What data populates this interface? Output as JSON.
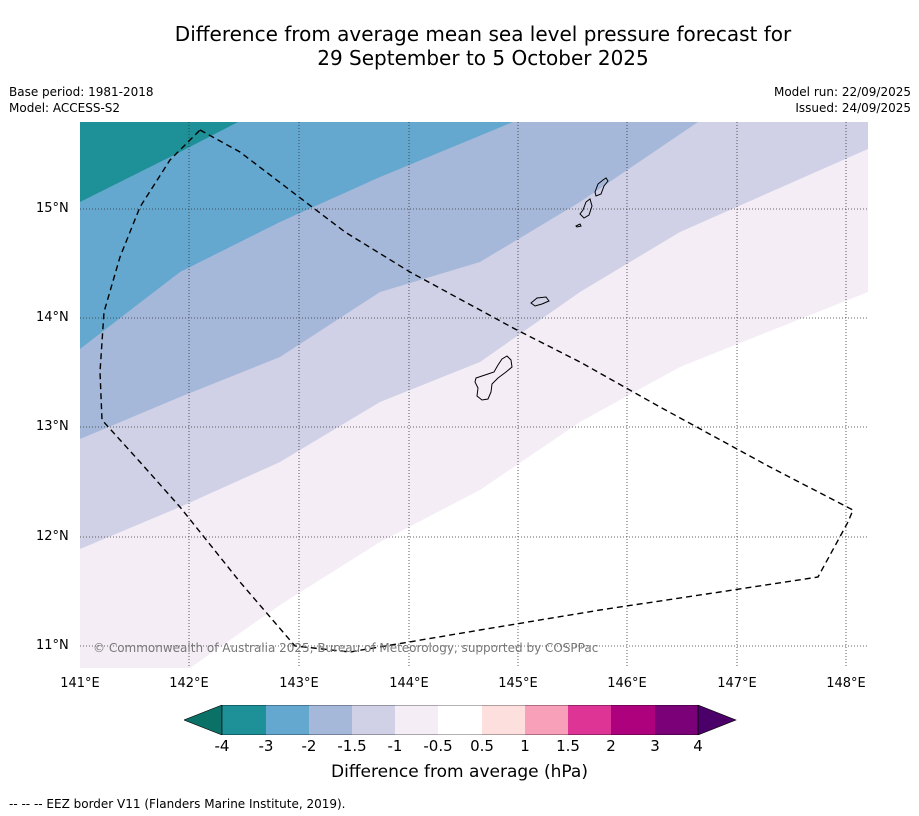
{
  "title": {
    "line1": "Difference from average mean sea level pressure forecast for",
    "line2": "29 September to 5 October 2025"
  },
  "meta": {
    "base_period": "Base period: 1981-2018",
    "model": "Model: ACCESS-S2",
    "model_run": "Model run: 22/09/2025",
    "issued": "Issued: 24/09/2025"
  },
  "axes": {
    "lat_labels": [
      "15°N",
      "14°N",
      "13°N",
      "12°N",
      "11°N"
    ],
    "lon_labels": [
      "141°E",
      "142°E",
      "143°E",
      "144°E",
      "145°E",
      "146°E",
      "147°E",
      "148°E"
    ]
  },
  "copyright": "© Commonwealth of Australia 2025, Bureau of Meteorology, supported by COSPPac",
  "colorbar": {
    "ticks": [
      "-4",
      "-3",
      "-2",
      "-1.5",
      "-1",
      "-0.5",
      "0.5",
      "1",
      "1.5",
      "2",
      "3",
      "4"
    ],
    "colors": [
      "#0b7167",
      "#1d9098",
      "#64a8d0",
      "#a5b8d9",
      "#d0d1e6",
      "#f4edf6",
      "#ffffff",
      "#fde0de",
      "#f89fb9",
      "#dd3495",
      "#ae017e",
      "#7a0177",
      "#4a0068"
    ],
    "label": "Difference from average (hPa)"
  },
  "footer": "--  --  -- EEZ border V11 (Flanders Marine Institute, 2019)."
}
